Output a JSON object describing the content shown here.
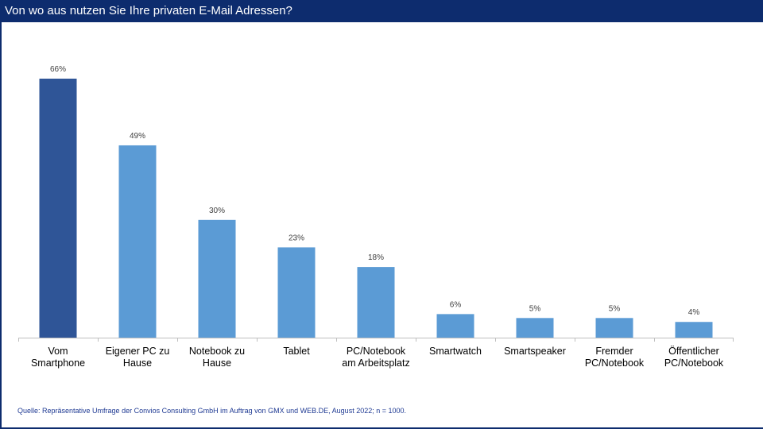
{
  "title": "Von wo aus nutzen Sie Ihre privaten E-Mail Adressen?",
  "source": "Quelle: Repräsentative Umfrage der Convios Consulting GmbH im Auftrag von GMX und WEB.DE, August 2022; n = 1000.",
  "colors": {
    "header": "#0d2c6e",
    "highlight_bar": "#2f5597",
    "bar": "#5b9bd5"
  },
  "chart_data": {
    "type": "bar",
    "title": "",
    "xlabel": "",
    "ylabel": "",
    "ylim": [
      0,
      70
    ],
    "grid": false,
    "categories": [
      [
        "Vom",
        "Smartphone"
      ],
      [
        "Eigener PC zu",
        "Hause"
      ],
      [
        "Notebook zu",
        "Hause"
      ],
      [
        "Tablet"
      ],
      [
        "PC/Notebook",
        "am Arbeitsplatz"
      ],
      [
        "Smartwatch"
      ],
      [
        "Smartspeaker"
      ],
      [
        "Fremder",
        "PC/Notebook"
      ],
      [
        "Öffentlicher",
        "PC/Notebook"
      ]
    ],
    "values": [
      66,
      49,
      30,
      23,
      18,
      6,
      5,
      5,
      4
    ],
    "value_labels": [
      "66%",
      "49%",
      "30%",
      "23%",
      "18%",
      "6%",
      "5%",
      "5%",
      "4%"
    ],
    "highlight_index": 0
  }
}
